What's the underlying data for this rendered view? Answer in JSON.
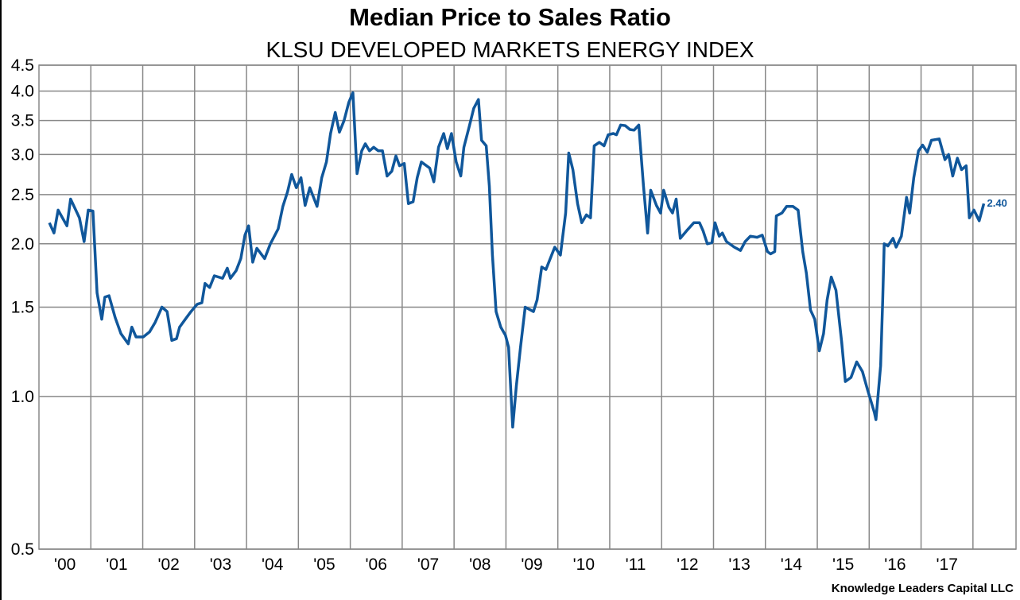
{
  "chart_data": {
    "type": "line",
    "title": "Median Price to Sales Ratio",
    "subtitle": "KLSU DEVELOPED MARKETS ENERGY INDEX",
    "credit": "Knowledge Leaders Capital LLC",
    "yscale": "log",
    "ylim": [
      0.5,
      4.5
    ],
    "xlim": [
      2000,
      2018.83
    ],
    "grid": true,
    "y_ticks": [
      "0.5",
      "1.0",
      "1.5",
      "2.0",
      "2.5",
      "3.0",
      "3.5",
      "4.0",
      "4.5"
    ],
    "y_tick_values": [
      0.5,
      1.0,
      1.5,
      2.0,
      2.5,
      3.0,
      3.5,
      4.0,
      4.5
    ],
    "x_ticks": [
      "'00",
      "'01",
      "'02",
      "'03",
      "'04",
      "'05",
      "'06",
      "'07",
      "'08",
      "'09",
      "'10",
      "'11",
      "'12",
      "'13",
      "'14",
      "'15",
      "'16",
      "'17"
    ],
    "last_value_label": "2.40",
    "line_color": "#10579b",
    "series": [
      {
        "name": "Median Price to Sales Ratio",
        "points": [
          [
            2000.2,
            2.2
          ],
          [
            2000.29,
            2.1
          ],
          [
            2000.37,
            2.33
          ],
          [
            2000.54,
            2.17
          ],
          [
            2000.61,
            2.45
          ],
          [
            2000.78,
            2.25
          ],
          [
            2000.87,
            2.02
          ],
          [
            2000.95,
            2.33
          ],
          [
            2001.04,
            2.32
          ],
          [
            2001.12,
            1.6
          ],
          [
            2001.21,
            1.42
          ],
          [
            2001.27,
            1.57
          ],
          [
            2001.35,
            1.58
          ],
          [
            2001.47,
            1.43
          ],
          [
            2001.58,
            1.33
          ],
          [
            2001.72,
            1.27
          ],
          [
            2001.79,
            1.37
          ],
          [
            2001.87,
            1.31
          ],
          [
            2002.01,
            1.31
          ],
          [
            2002.13,
            1.34
          ],
          [
            2002.24,
            1.4
          ],
          [
            2002.37,
            1.5
          ],
          [
            2002.47,
            1.47
          ],
          [
            2002.56,
            1.29
          ],
          [
            2002.65,
            1.3
          ],
          [
            2002.71,
            1.37
          ],
          [
            2002.82,
            1.42
          ],
          [
            2002.93,
            1.47
          ],
          [
            2003.05,
            1.52
          ],
          [
            2003.14,
            1.53
          ],
          [
            2003.2,
            1.67
          ],
          [
            2003.29,
            1.64
          ],
          [
            2003.38,
            1.73
          ],
          [
            2003.54,
            1.71
          ],
          [
            2003.63,
            1.79
          ],
          [
            2003.69,
            1.71
          ],
          [
            2003.8,
            1.77
          ],
          [
            2003.89,
            1.87
          ],
          [
            2003.97,
            2.08
          ],
          [
            2004.04,
            2.17
          ],
          [
            2004.12,
            1.84
          ],
          [
            2004.2,
            1.96
          ],
          [
            2004.35,
            1.87
          ],
          [
            2004.46,
            2.0
          ],
          [
            2004.61,
            2.14
          ],
          [
            2004.7,
            2.37
          ],
          [
            2004.79,
            2.53
          ],
          [
            2004.87,
            2.74
          ],
          [
            2004.96,
            2.58
          ],
          [
            2005.05,
            2.7
          ],
          [
            2005.13,
            2.38
          ],
          [
            2005.22,
            2.58
          ],
          [
            2005.36,
            2.37
          ],
          [
            2005.45,
            2.7
          ],
          [
            2005.54,
            2.9
          ],
          [
            2005.62,
            3.3
          ],
          [
            2005.71,
            3.63
          ],
          [
            2005.79,
            3.32
          ],
          [
            2005.88,
            3.5
          ],
          [
            2005.97,
            3.8
          ],
          [
            2006.05,
            3.97
          ],
          [
            2006.13,
            2.75
          ],
          [
            2006.22,
            3.05
          ],
          [
            2006.29,
            3.15
          ],
          [
            2006.37,
            3.05
          ],
          [
            2006.45,
            3.1
          ],
          [
            2006.54,
            3.05
          ],
          [
            2006.62,
            3.05
          ],
          [
            2006.71,
            2.72
          ],
          [
            2006.8,
            2.78
          ],
          [
            2006.88,
            2.98
          ],
          [
            2006.95,
            2.85
          ],
          [
            2007.04,
            2.88
          ],
          [
            2007.12,
            2.4
          ],
          [
            2007.21,
            2.42
          ],
          [
            2007.29,
            2.7
          ],
          [
            2007.37,
            2.9
          ],
          [
            2007.53,
            2.82
          ],
          [
            2007.61,
            2.65
          ],
          [
            2007.7,
            3.1
          ],
          [
            2007.8,
            3.3
          ],
          [
            2007.87,
            3.08
          ],
          [
            2007.95,
            3.3
          ],
          [
            2008.04,
            2.9
          ],
          [
            2008.13,
            2.72
          ],
          [
            2008.19,
            3.1
          ],
          [
            2008.29,
            3.4
          ],
          [
            2008.38,
            3.7
          ],
          [
            2008.47,
            3.85
          ],
          [
            2008.53,
            3.2
          ],
          [
            2008.62,
            3.12
          ],
          [
            2008.68,
            2.6
          ],
          [
            2008.74,
            1.9
          ],
          [
            2008.81,
            1.47
          ],
          [
            2008.9,
            1.37
          ],
          [
            2008.99,
            1.32
          ],
          [
            2009.05,
            1.25
          ],
          [
            2009.13,
            0.87
          ],
          [
            2009.2,
            1.05
          ],
          [
            2009.28,
            1.25
          ],
          [
            2009.37,
            1.5
          ],
          [
            2009.53,
            1.47
          ],
          [
            2009.6,
            1.55
          ],
          [
            2009.69,
            1.8
          ],
          [
            2009.77,
            1.78
          ],
          [
            2009.94,
            1.97
          ],
          [
            2010.05,
            1.9
          ],
          [
            2010.15,
            2.3
          ],
          [
            2010.21,
            3.02
          ],
          [
            2010.29,
            2.8
          ],
          [
            2010.38,
            2.4
          ],
          [
            2010.46,
            2.2
          ],
          [
            2010.55,
            2.28
          ],
          [
            2010.63,
            2.25
          ],
          [
            2010.7,
            3.12
          ],
          [
            2010.8,
            3.17
          ],
          [
            2010.89,
            3.12
          ],
          [
            2010.97,
            3.28
          ],
          [
            2011.07,
            3.3
          ],
          [
            2011.13,
            3.28
          ],
          [
            2011.21,
            3.43
          ],
          [
            2011.3,
            3.42
          ],
          [
            2011.39,
            3.36
          ],
          [
            2011.47,
            3.35
          ],
          [
            2011.56,
            3.43
          ],
          [
            2011.65,
            2.6
          ],
          [
            2011.73,
            2.1
          ],
          [
            2011.79,
            2.55
          ],
          [
            2011.9,
            2.38
          ],
          [
            2011.98,
            2.3
          ],
          [
            2012.04,
            2.55
          ],
          [
            2012.14,
            2.36
          ],
          [
            2012.21,
            2.3
          ],
          [
            2012.28,
            2.45
          ],
          [
            2012.36,
            2.05
          ],
          [
            2012.48,
            2.12
          ],
          [
            2012.62,
            2.2
          ],
          [
            2012.73,
            2.2
          ],
          [
            2012.8,
            2.12
          ],
          [
            2012.88,
            2.0
          ],
          [
            2012.97,
            2.01
          ],
          [
            2013.03,
            2.2
          ],
          [
            2013.11,
            2.07
          ],
          [
            2013.17,
            2.1
          ],
          [
            2013.25,
            2.02
          ],
          [
            2013.4,
            1.97
          ],
          [
            2013.52,
            1.94
          ],
          [
            2013.61,
            2.02
          ],
          [
            2013.71,
            2.07
          ],
          [
            2013.84,
            2.06
          ],
          [
            2013.94,
            2.08
          ],
          [
            2014.04,
            1.93
          ],
          [
            2014.1,
            1.91
          ],
          [
            2014.18,
            1.93
          ],
          [
            2014.21,
            2.27
          ],
          [
            2014.32,
            2.3
          ],
          [
            2014.41,
            2.37
          ],
          [
            2014.53,
            2.37
          ],
          [
            2014.63,
            2.33
          ],
          [
            2014.72,
            1.93
          ],
          [
            2014.79,
            1.75
          ],
          [
            2014.87,
            1.48
          ],
          [
            2014.95,
            1.42
          ],
          [
            2015.04,
            1.23
          ],
          [
            2015.12,
            1.33
          ],
          [
            2015.19,
            1.55
          ],
          [
            2015.27,
            1.72
          ],
          [
            2015.36,
            1.62
          ],
          [
            2015.47,
            1.28
          ],
          [
            2015.54,
            1.07
          ],
          [
            2015.65,
            1.09
          ],
          [
            2015.76,
            1.17
          ],
          [
            2015.87,
            1.12
          ],
          [
            2015.97,
            1.03
          ],
          [
            2016.1,
            0.93
          ],
          [
            2016.13,
            0.9
          ],
          [
            2016.22,
            1.15
          ],
          [
            2016.26,
            1.55
          ],
          [
            2016.29,
            2.0
          ],
          [
            2016.36,
            1.98
          ],
          [
            2016.46,
            2.05
          ],
          [
            2016.52,
            1.97
          ],
          [
            2016.62,
            2.07
          ],
          [
            2016.68,
            2.3
          ],
          [
            2016.72,
            2.47
          ],
          [
            2016.78,
            2.3
          ],
          [
            2016.86,
            2.7
          ],
          [
            2016.95,
            3.05
          ],
          [
            2017.03,
            3.13
          ],
          [
            2017.12,
            3.03
          ],
          [
            2017.2,
            3.2
          ],
          [
            2017.35,
            3.22
          ],
          [
            2017.46,
            2.93
          ],
          [
            2017.53,
            3.0
          ],
          [
            2017.61,
            2.72
          ],
          [
            2017.7,
            2.95
          ],
          [
            2017.78,
            2.8
          ],
          [
            2017.87,
            2.85
          ],
          [
            2017.93,
            2.25
          ],
          [
            2018.02,
            2.33
          ],
          [
            2018.12,
            2.22
          ],
          [
            2018.21,
            2.4
          ]
        ]
      }
    ]
  }
}
